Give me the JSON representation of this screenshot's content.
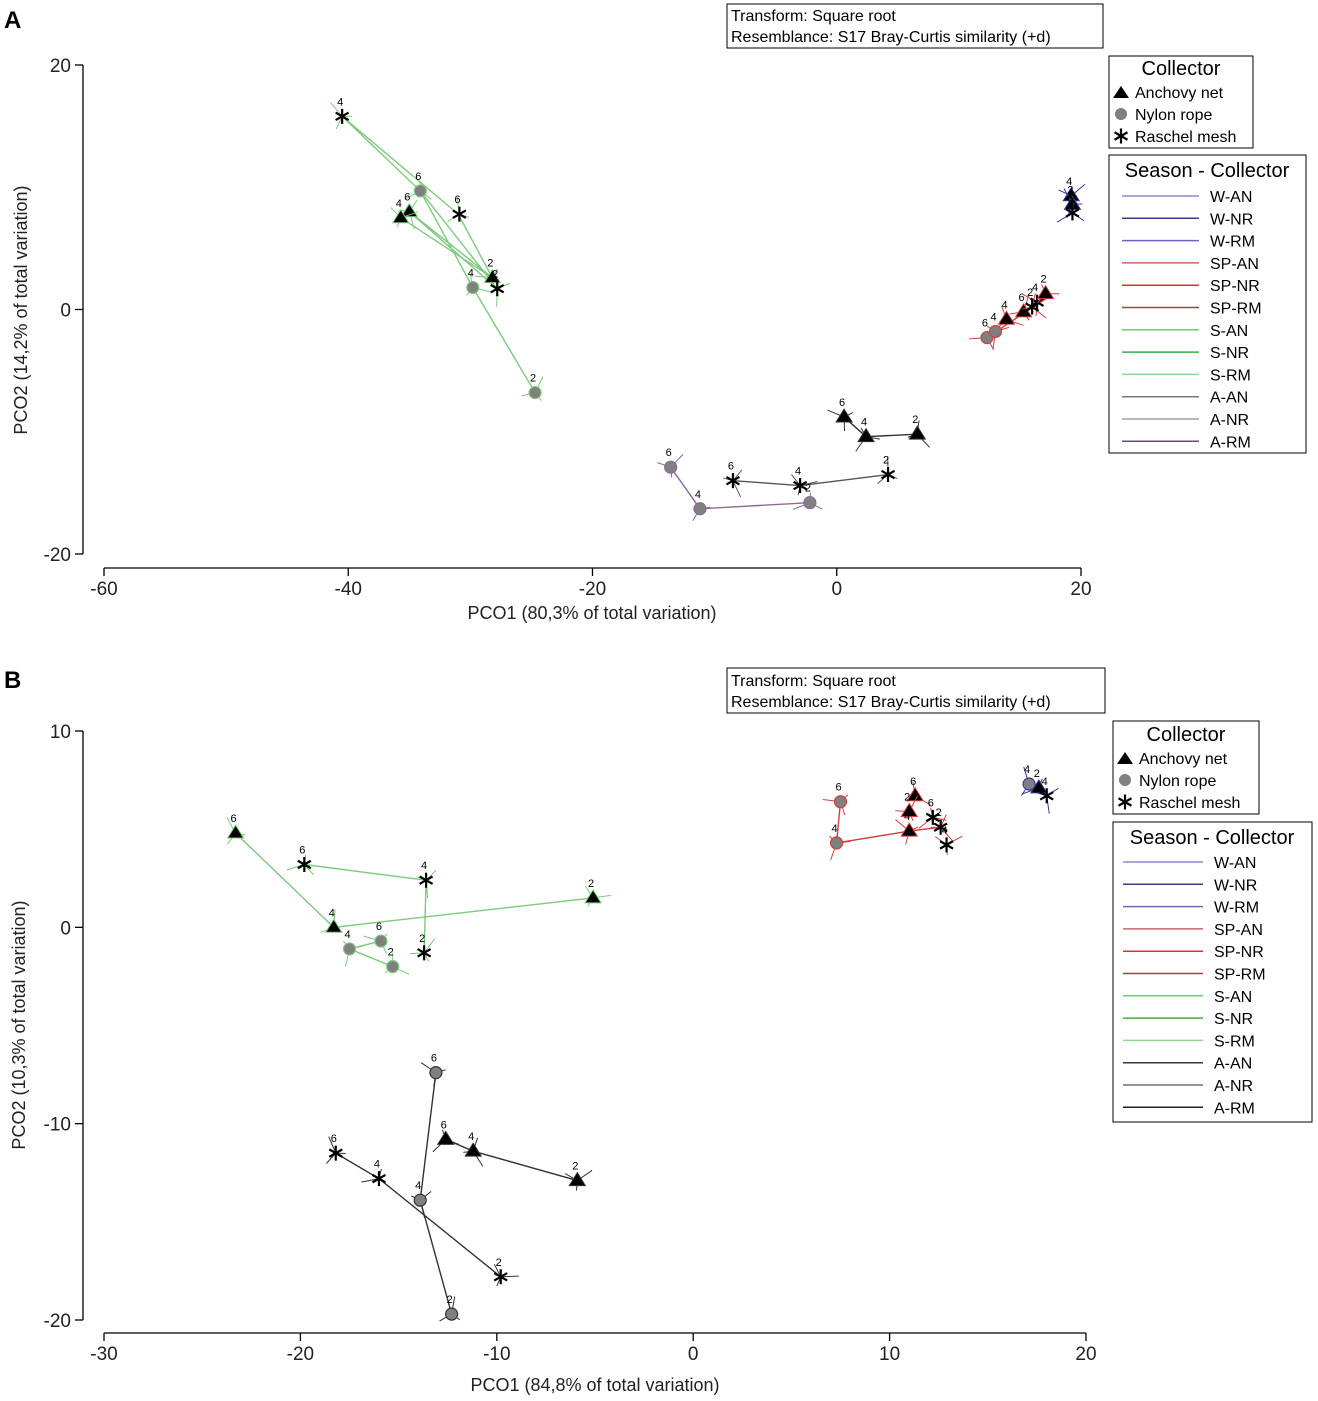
{
  "chart_data": [
    {
      "panel": "A",
      "type": "scatter",
      "chart_kind": "PCO ordination with trajectory lines and vector arrows",
      "xlabel": "PCO1 (80,3% of total variation)",
      "ylabel": "PCO2 (14,2% of total variation)",
      "xlim": [
        -60,
        20
      ],
      "ylim": [
        -20,
        20
      ],
      "xticks": [
        -60,
        -40,
        -20,
        0,
        20
      ],
      "yticks": [
        20,
        0,
        -20
      ],
      "transform_label": "Transform: Square root",
      "resemblance_label": "Resemblance: S17 Bray-Curtis similarity (+d)",
      "points": [
        {
          "x": -40.5,
          "y": 15.8,
          "shape": "star",
          "label": "4",
          "color": "#7dc97d"
        },
        {
          "x": -34.1,
          "y": 9.7,
          "shape": "circle",
          "label": "6",
          "color": "#7dc97d"
        },
        {
          "x": -35.0,
          "y": 8.0,
          "shape": "triangle",
          "label": "6",
          "color": "#7dc97d"
        },
        {
          "x": -35.7,
          "y": 7.5,
          "shape": "triangle",
          "label": "4",
          "color": "#7dc97d"
        },
        {
          "x": -30.9,
          "y": 7.8,
          "shape": "star",
          "label": "6",
          "color": "#7dc97d"
        },
        {
          "x": -28.2,
          "y": 2.6,
          "shape": "triangle",
          "label": "2",
          "color": "#7dc97d"
        },
        {
          "x": -27.8,
          "y": 1.7,
          "shape": "star",
          "label": "2",
          "color": "#7dc97d"
        },
        {
          "x": -29.8,
          "y": 1.8,
          "shape": "circle",
          "label": "4",
          "color": "#7dc97d"
        },
        {
          "x": -24.7,
          "y": -6.8,
          "shape": "circle",
          "label": "2",
          "color": "#7dc97d"
        },
        {
          "x": 0.6,
          "y": -8.8,
          "shape": "triangle",
          "label": "6",
          "color": "#333333"
        },
        {
          "x": 2.4,
          "y": -10.4,
          "shape": "triangle",
          "label": "4",
          "color": "#333333"
        },
        {
          "x": 6.6,
          "y": -10.2,
          "shape": "triangle",
          "label": "2",
          "color": "#333333"
        },
        {
          "x": -13.6,
          "y": -12.9,
          "shape": "circle",
          "label": "6",
          "color": "#8a6b9a"
        },
        {
          "x": -11.2,
          "y": -16.3,
          "shape": "circle",
          "label": "4",
          "color": "#8a6b9a"
        },
        {
          "x": -2.2,
          "y": -15.8,
          "shape": "circle",
          "label": "2",
          "color": "#8a6b9a"
        },
        {
          "x": -8.5,
          "y": -14.0,
          "shape": "star",
          "label": "6",
          "color": "#555555"
        },
        {
          "x": -3.0,
          "y": -14.4,
          "shape": "star",
          "label": "4",
          "color": "#555555"
        },
        {
          "x": 4.2,
          "y": -13.5,
          "shape": "star",
          "label": "2",
          "color": "#555555"
        },
        {
          "x": 12.3,
          "y": -2.3,
          "shape": "circle",
          "label": "6",
          "color": "#d04040"
        },
        {
          "x": 13.0,
          "y": -1.8,
          "shape": "circle",
          "label": "4",
          "color": "#d04040"
        },
        {
          "x": 13.9,
          "y": -0.8,
          "shape": "triangle",
          "label": "4",
          "color": "#d04040"
        },
        {
          "x": 15.3,
          "y": -0.2,
          "shape": "triangle",
          "label": "6",
          "color": "#d04040"
        },
        {
          "x": 16.4,
          "y": 0.6,
          "shape": "star",
          "label": "4",
          "color": "#d04040"
        },
        {
          "x": 17.1,
          "y": 1.3,
          "shape": "triangle",
          "label": "2",
          "color": "#d04040"
        },
        {
          "x": 16.0,
          "y": 0.2,
          "shape": "star",
          "label": "2",
          "color": "#d04040"
        },
        {
          "x": 19.2,
          "y": 9.3,
          "shape": "triangle",
          "label": "4",
          "color": "#3a3aa0"
        },
        {
          "x": 19.3,
          "y": 8.6,
          "shape": "triangle",
          "label": "2",
          "color": "#3a3aa0"
        },
        {
          "x": 19.3,
          "y": 7.9,
          "shape": "star",
          "label": "6",
          "color": "#3a3aa0"
        }
      ],
      "trajectories": [
        {
          "color": "#7dc97d",
          "path": [
            [
              -40.5,
              15.8
            ],
            [
              -31.0,
              7.8
            ],
            [
              -28.2,
              2.6
            ]
          ]
        },
        {
          "color": "#7dc97d",
          "path": [
            [
              -40.5,
              15.8
            ],
            [
              -34.1,
              9.7
            ],
            [
              -27.8,
              1.7
            ]
          ]
        },
        {
          "color": "#7dc97d",
          "path": [
            [
              -34.1,
              9.7
            ],
            [
              -29.8,
              1.8
            ],
            [
              -24.7,
              -6.8
            ]
          ]
        },
        {
          "color": "#7dc97d",
          "path": [
            [
              -35.7,
              7.5
            ],
            [
              -28.2,
              2.6
            ],
            [
              -35.0,
              8.0
            ]
          ]
        },
        {
          "color": "#7dc97d",
          "path": [
            [
              -35.0,
              8.0
            ],
            [
              -27.8,
              1.7
            ]
          ]
        },
        {
          "color": "#333333",
          "path": [
            [
              0.6,
              -8.8
            ],
            [
              2.4,
              -10.4
            ],
            [
              6.6,
              -10.2
            ]
          ]
        },
        {
          "color": "#8a6b9a",
          "path": [
            [
              -13.6,
              -12.9
            ],
            [
              -11.2,
              -16.3
            ],
            [
              -2.2,
              -15.8
            ]
          ]
        },
        {
          "color": "#555555",
          "path": [
            [
              -8.5,
              -14.0
            ],
            [
              -3.0,
              -14.4
            ],
            [
              4.2,
              -13.5
            ]
          ]
        },
        {
          "color": "#d04040",
          "path": [
            [
              12.3,
              -2.3
            ],
            [
              17.3,
              1.0
            ]
          ]
        },
        {
          "color": "#3a3aa0",
          "path": [
            [
              19.2,
              9.3
            ],
            [
              19.3,
              7.3
            ]
          ]
        }
      ],
      "collector_legend": {
        "title": "Collector",
        "items": [
          {
            "label": "Anchovy net",
            "shape": "triangle",
            "color": "#000000"
          },
          {
            "label": "Nylon rope",
            "shape": "circle",
            "color": "#808080"
          },
          {
            "label": "Raschel mesh",
            "shape": "star",
            "color": "#000000"
          }
        ]
      },
      "season_legend": {
        "title": "Season - Collector",
        "items": [
          {
            "label": "W-AN",
            "color": "#8a8acd"
          },
          {
            "label": "W-NR",
            "color": "#3c3c8c"
          },
          {
            "label": "W-RM",
            "color": "#6a6ac0"
          },
          {
            "label": "SP-AN",
            "color": "#c46a6a"
          },
          {
            "label": "SP-NR",
            "color": "#e03030"
          },
          {
            "label": "SP-RM",
            "color": "#b03a4a"
          },
          {
            "label": "S-AN",
            "color": "#6ccf6c"
          },
          {
            "label": "S-NR",
            "color": "#3fae3f"
          },
          {
            "label": "S-RM",
            "color": "#8fd98f"
          },
          {
            "label": "A-AN",
            "color": "#7a7a7a"
          },
          {
            "label": "A-NR",
            "color": "#a0a0a0"
          },
          {
            "label": "A-RM",
            "color": "#6a4a7a"
          }
        ]
      }
    },
    {
      "panel": "B",
      "type": "scatter",
      "chart_kind": "PCO ordination with trajectory lines and vector arrows",
      "xlabel": "PCO1 (84,8% of total variation)",
      "ylabel": "PCO2 (10,3% of total variation)",
      "xlim": [
        -30,
        20
      ],
      "ylim": [
        -20,
        10
      ],
      "xticks": [
        -30,
        -20,
        -10,
        0,
        10,
        20
      ],
      "yticks": [
        10,
        0,
        -10,
        -20
      ],
      "transform_label": "Transform: Square root",
      "resemblance_label": "Resemblance: S17 Bray-Curtis similarity (+d)",
      "points": [
        {
          "x": -23.3,
          "y": 4.8,
          "shape": "triangle",
          "label": "6",
          "color": "#7dc97d"
        },
        {
          "x": -19.8,
          "y": 3.2,
          "shape": "star",
          "label": "6",
          "color": "#7dc97d"
        },
        {
          "x": -13.6,
          "y": 2.4,
          "shape": "star",
          "label": "4",
          "color": "#7dc97d"
        },
        {
          "x": -5.1,
          "y": 1.5,
          "shape": "triangle",
          "label": "2",
          "color": "#7dc97d"
        },
        {
          "x": -18.3,
          "y": 0.0,
          "shape": "triangle",
          "label": "4",
          "color": "#7dc97d"
        },
        {
          "x": -15.9,
          "y": -0.7,
          "shape": "circle",
          "label": "6",
          "color": "#7dc97d"
        },
        {
          "x": -17.5,
          "y": -1.1,
          "shape": "circle",
          "label": "4",
          "color": "#7dc97d"
        },
        {
          "x": -15.3,
          "y": -2.0,
          "shape": "circle",
          "label": "2",
          "color": "#7dc97d"
        },
        {
          "x": -13.7,
          "y": -1.3,
          "shape": "star",
          "label": "2",
          "color": "#7dc97d"
        },
        {
          "x": -13.1,
          "y": -7.4,
          "shape": "circle",
          "label": "6",
          "color": "#333333"
        },
        {
          "x": -12.6,
          "y": -10.8,
          "shape": "triangle",
          "label": "6",
          "color": "#333333"
        },
        {
          "x": -11.2,
          "y": -11.4,
          "shape": "triangle",
          "label": "4",
          "color": "#333333"
        },
        {
          "x": -5.9,
          "y": -12.9,
          "shape": "triangle",
          "label": "2",
          "color": "#333333"
        },
        {
          "x": -18.2,
          "y": -11.5,
          "shape": "star",
          "label": "6",
          "color": "#333333"
        },
        {
          "x": -16.0,
          "y": -12.8,
          "shape": "star",
          "label": "4",
          "color": "#333333"
        },
        {
          "x": -13.9,
          "y": -13.9,
          "shape": "circle",
          "label": "4",
          "color": "#333333"
        },
        {
          "x": -9.8,
          "y": -17.8,
          "shape": "star",
          "label": "2",
          "color": "#333333"
        },
        {
          "x": -12.3,
          "y": -19.7,
          "shape": "circle",
          "label": "2",
          "color": "#333333"
        },
        {
          "x": 7.5,
          "y": 6.4,
          "shape": "circle",
          "label": "6",
          "color": "#d04040"
        },
        {
          "x": 7.3,
          "y": 4.3,
          "shape": "circle",
          "label": "4",
          "color": "#d04040"
        },
        {
          "x": 11.3,
          "y": 6.7,
          "shape": "triangle",
          "label": "6",
          "color": "#d04040"
        },
        {
          "x": 11.0,
          "y": 5.9,
          "shape": "triangle",
          "label": "2",
          "color": "#d04040"
        },
        {
          "x": 11.0,
          "y": 4.9,
          "shape": "triangle",
          "label": "4",
          "color": "#d04040"
        },
        {
          "x": 12.2,
          "y": 5.6,
          "shape": "star",
          "label": "6",
          "color": "#d04040"
        },
        {
          "x": 12.6,
          "y": 5.1,
          "shape": "star",
          "label": "2",
          "color": "#d04040"
        },
        {
          "x": 12.9,
          "y": 4.2,
          "shape": "star",
          "label": "4",
          "color": "#d04040"
        },
        {
          "x": 17.1,
          "y": 7.3,
          "shape": "circle",
          "label": "4",
          "color": "#3a3aa0"
        },
        {
          "x": 17.6,
          "y": 7.1,
          "shape": "triangle",
          "label": "2",
          "color": "#3a3aa0"
        },
        {
          "x": 18.0,
          "y": 6.7,
          "shape": "star",
          "label": "4",
          "color": "#3a3aa0"
        }
      ],
      "trajectories": [
        {
          "color": "#7dc97d",
          "path": [
            [
              -23.3,
              4.8
            ],
            [
              -18.3,
              0.0
            ],
            [
              -5.1,
              1.5
            ]
          ]
        },
        {
          "color": "#7dc97d",
          "path": [
            [
              -19.8,
              3.2
            ],
            [
              -13.6,
              2.4
            ],
            [
              -13.7,
              -1.3
            ]
          ]
        },
        {
          "color": "#7dc97d",
          "path": [
            [
              -15.9,
              -0.7
            ],
            [
              -17.5,
              -1.1
            ],
            [
              -15.3,
              -2.0
            ]
          ]
        },
        {
          "color": "#333333",
          "path": [
            [
              -13.1,
              -7.4
            ],
            [
              -13.9,
              -13.9
            ],
            [
              -12.3,
              -19.7
            ]
          ]
        },
        {
          "color": "#333333",
          "path": [
            [
              -12.6,
              -10.8
            ],
            [
              -11.2,
              -11.4
            ],
            [
              -5.9,
              -12.9
            ]
          ]
        },
        {
          "color": "#333333",
          "path": [
            [
              -18.2,
              -11.5
            ],
            [
              -16.0,
              -12.8
            ],
            [
              -9.8,
              -17.8
            ]
          ]
        },
        {
          "color": "#d04040",
          "path": [
            [
              7.5,
              6.4
            ],
            [
              7.3,
              4.3
            ],
            [
              11.0,
              4.9
            ],
            [
              12.6,
              5.1
            ]
          ]
        },
        {
          "color": "#3a3aa0",
          "path": [
            [
              17.1,
              7.3
            ],
            [
              18.0,
              6.7
            ]
          ]
        }
      ],
      "collector_legend": {
        "title": "Collector",
        "items": [
          {
            "label": "Anchovy net",
            "shape": "triangle",
            "color": "#000000"
          },
          {
            "label": "Nylon rope",
            "shape": "circle",
            "color": "#808080"
          },
          {
            "label": "Raschel mesh",
            "shape": "star",
            "color": "#000000"
          }
        ]
      },
      "season_legend": {
        "title": "Season - Collector",
        "items": [
          {
            "label": "W-AN",
            "color": "#8a8acd"
          },
          {
            "label": "W-NR",
            "color": "#3c3c8c"
          },
          {
            "label": "W-RM",
            "color": "#6a6ac0"
          },
          {
            "label": "SP-AN",
            "color": "#c46a6a"
          },
          {
            "label": "SP-NR",
            "color": "#e03030"
          },
          {
            "label": "SP-RM",
            "color": "#b03a4a"
          },
          {
            "label": "S-AN",
            "color": "#6ccf6c"
          },
          {
            "label": "S-NR",
            "color": "#3fae3f"
          },
          {
            "label": "S-RM",
            "color": "#8fd98f"
          },
          {
            "label": "A-AN",
            "color": "#3a3a3a"
          },
          {
            "label": "A-NR",
            "color": "#707070"
          },
          {
            "label": "A-RM",
            "color": "#222222"
          }
        ]
      }
    }
  ]
}
